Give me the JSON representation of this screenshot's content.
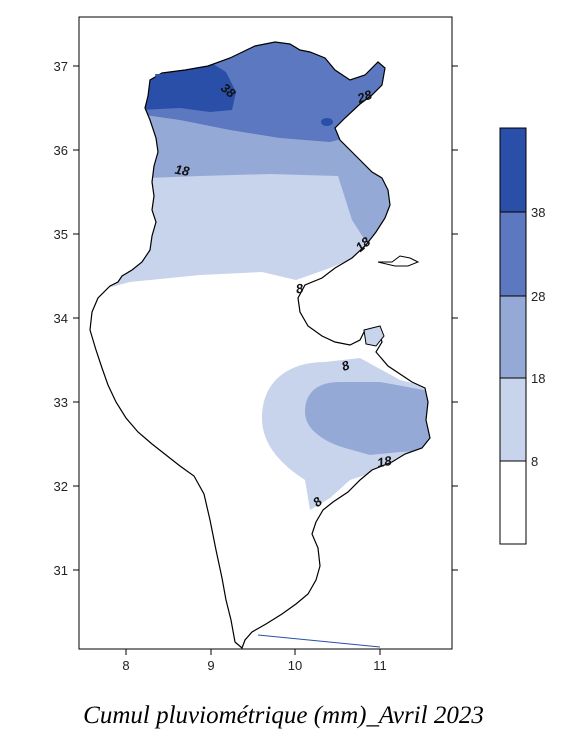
{
  "caption": "Cumul pluviométrique (mm)_Avril 2023",
  "axes": {
    "x_ticks": [
      "8",
      "9",
      "10",
      "11"
    ],
    "y_ticks": [
      "37",
      "36",
      "35",
      "34",
      "33",
      "32",
      "31"
    ]
  },
  "contour_labels": [
    "38",
    "28",
    "18",
    "18",
    "8",
    "8",
    "18",
    "8"
  ],
  "legend": {
    "levels": [
      {
        "label": "38",
        "color": "#2a4fa8"
      },
      {
        "label": "28",
        "color": "#5b78c0"
      },
      {
        "label": "18",
        "color": "#94a9d6"
      },
      {
        "label": "8",
        "color": "#c8d3ec"
      }
    ],
    "base_color": "#ffffff"
  },
  "colors": {
    "band_8_18": "#c8d3ec",
    "band_18_28": "#94a9d6",
    "band_28_38": "#5b78c0",
    "band_38_plus": "#2a4fa8",
    "border": "#000000"
  }
}
